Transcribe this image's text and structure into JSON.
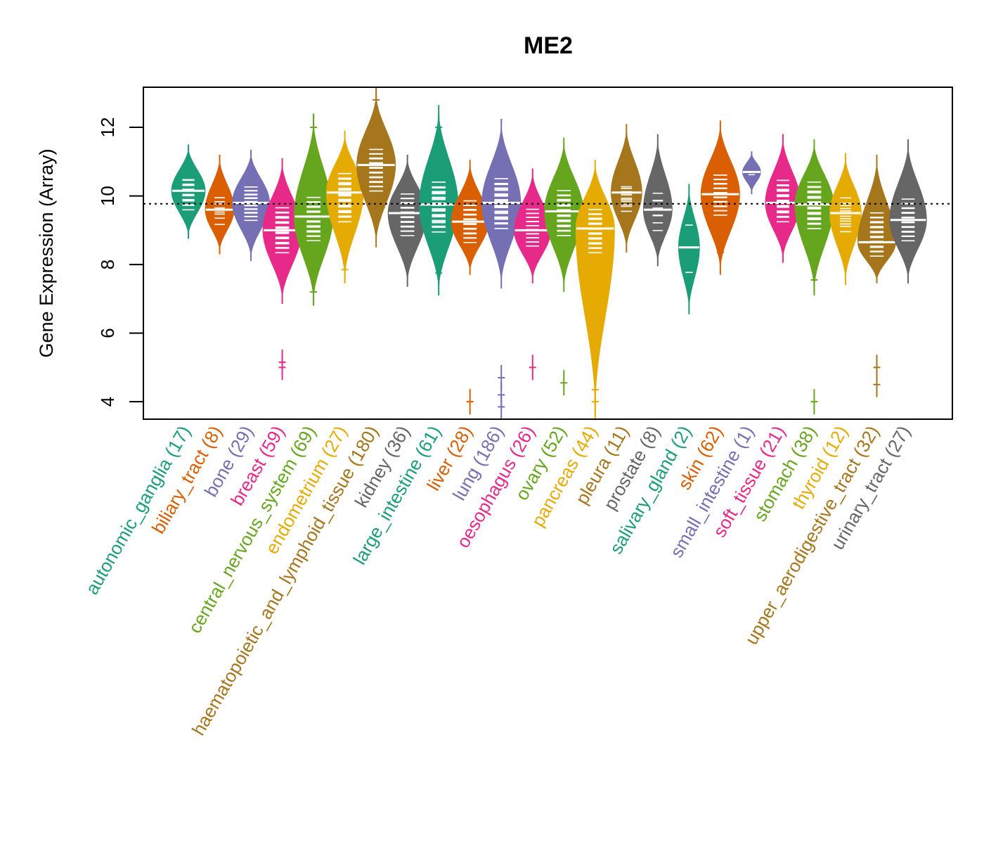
{
  "chart_data": {
    "type": "violin",
    "title": "ME2",
    "xlabel": "",
    "ylabel": "Gene Expression (Array)",
    "ylim": [
      3.49,
      13.17
    ],
    "yticks": [
      4,
      6,
      8,
      10,
      12
    ],
    "reference_line": {
      "value": 9.77,
      "style": "dotted",
      "color": "#000000"
    },
    "grid": false,
    "legend": "none",
    "categories": [
      {
        "name": "autonomic_ganglia",
        "n": 17,
        "color": "#1B9E77",
        "median": 10.15,
        "q1": 9.65,
        "q3": 10.5,
        "min": 8.75,
        "max": 11.5,
        "outliers": []
      },
      {
        "name": "biliary_tract",
        "n": 8,
        "color": "#D95F02",
        "median": 9.6,
        "q1": 9.2,
        "q3": 10.0,
        "min": 8.3,
        "max": 11.2,
        "outliers": []
      },
      {
        "name": "bone",
        "n": 29,
        "color": "#7570B3",
        "median": 9.8,
        "q1": 9.35,
        "q3": 10.2,
        "min": 8.1,
        "max": 11.35,
        "outliers": []
      },
      {
        "name": "breast",
        "n": 59,
        "color": "#E7298A",
        "median": 9.0,
        "q1": 8.4,
        "q3": 9.6,
        "min": 6.85,
        "max": 11.1,
        "outliers": [
          5.0,
          5.15
        ]
      },
      {
        "name": "central_nervous_system",
        "n": 69,
        "color": "#66A61E",
        "median": 9.4,
        "q1": 8.75,
        "q3": 9.9,
        "min": 6.8,
        "max": 12.4,
        "outliers": [
          12.0,
          7.2
        ]
      },
      {
        "name": "endometrium",
        "n": 27,
        "color": "#E6AB02",
        "median": 10.1,
        "q1": 9.3,
        "q3": 10.6,
        "min": 7.45,
        "max": 11.9,
        "outliers": [
          7.85
        ]
      },
      {
        "name": "haematopoietic_and_lymphoid_tissue",
        "n": 180,
        "color": "#A6761D",
        "median": 10.9,
        "q1": 10.2,
        "q3": 11.3,
        "min": 8.5,
        "max": 13.1,
        "outliers": [
          12.8
        ]
      },
      {
        "name": "kidney",
        "n": 36,
        "color": "#666666",
        "median": 9.5,
        "q1": 8.9,
        "q3": 10.0,
        "min": 7.35,
        "max": 11.2,
        "outliers": []
      },
      {
        "name": "large_intestine",
        "n": 61,
        "color": "#1B9E77",
        "median": 9.75,
        "q1": 9.0,
        "q3": 10.35,
        "min": 7.1,
        "max": 12.65,
        "outliers": [
          12.0,
          7.75
        ]
      },
      {
        "name": "liver",
        "n": 28,
        "color": "#D95F02",
        "median": 9.25,
        "q1": 8.7,
        "q3": 9.8,
        "min": 7.7,
        "max": 11.05,
        "outliers": [
          4.0
        ]
      },
      {
        "name": "lung",
        "n": 186,
        "color": "#7570B3",
        "median": 9.8,
        "q1": 9.1,
        "q3": 10.45,
        "min": 7.3,
        "max": 12.25,
        "outliers": [
          4.7,
          4.2,
          3.85
        ]
      },
      {
        "name": "oesophagus",
        "n": 26,
        "color": "#E7298A",
        "median": 9.0,
        "q1": 8.6,
        "q3": 9.55,
        "min": 7.45,
        "max": 10.8,
        "outliers": [
          5.0
        ]
      },
      {
        "name": "ovary",
        "n": 52,
        "color": "#66A61E",
        "median": 9.55,
        "q1": 8.9,
        "q3": 10.1,
        "min": 7.2,
        "max": 11.7,
        "outliers": [
          4.55
        ]
      },
      {
        "name": "pancreas",
        "n": 44,
        "color": "#E6AB02",
        "median": 9.05,
        "q1": 8.4,
        "q3": 9.55,
        "min": 3.5,
        "max": 11.05,
        "outliers": [
          7.15,
          6.3,
          5.2,
          4.35,
          4.0
        ]
      },
      {
        "name": "pleura",
        "n": 11,
        "color": "#A6761D",
        "median": 10.1,
        "q1": 9.6,
        "q3": 10.3,
        "min": 8.35,
        "max": 12.1,
        "outliers": []
      },
      {
        "name": "prostate",
        "n": 8,
        "color": "#666666",
        "median": 9.6,
        "q1": 9.0,
        "q3": 10.15,
        "min": 7.95,
        "max": 11.8,
        "outliers": []
      },
      {
        "name": "salivary_gland",
        "n": 2,
        "color": "#1B9E77",
        "median": 8.5,
        "q1": 7.2,
        "q3": 9.8,
        "min": 6.55,
        "max": 10.35,
        "outliers": []
      },
      {
        "name": "skin",
        "n": 62,
        "color": "#D95F02",
        "median": 10.05,
        "q1": 9.5,
        "q3": 10.55,
        "min": 7.7,
        "max": 12.2,
        "outliers": [
          8.35
        ]
      },
      {
        "name": "small_intestine",
        "n": 1,
        "color": "#7570B3",
        "median": 10.7,
        "q1": 10.7,
        "q3": 10.7,
        "min": 10.05,
        "max": 11.3,
        "outliers": []
      },
      {
        "name": "soft_tissue",
        "n": 21,
        "color": "#E7298A",
        "median": 9.8,
        "q1": 9.3,
        "q3": 10.4,
        "min": 8.05,
        "max": 11.8,
        "outliers": []
      },
      {
        "name": "stomach",
        "n": 38,
        "color": "#66A61E",
        "median": 9.75,
        "q1": 9.1,
        "q3": 10.35,
        "min": 7.1,
        "max": 11.65,
        "outliers": [
          7.55,
          4.0
        ]
      },
      {
        "name": "thyroid",
        "n": 12,
        "color": "#E6AB02",
        "median": 9.5,
        "q1": 9.0,
        "q3": 9.9,
        "min": 7.4,
        "max": 11.25,
        "outliers": [
          8.1
        ]
      },
      {
        "name": "upper_aerodigestive_tract",
        "n": 32,
        "color": "#A6761D",
        "median": 8.65,
        "q1": 8.3,
        "q3": 9.45,
        "min": 7.45,
        "max": 11.2,
        "outliers": [
          5.0,
          4.5
        ]
      },
      {
        "name": "urinary_tract",
        "n": 27,
        "color": "#666666",
        "median": 9.3,
        "q1": 8.75,
        "q3": 9.85,
        "min": 7.45,
        "max": 11.65,
        "outliers": []
      }
    ]
  }
}
